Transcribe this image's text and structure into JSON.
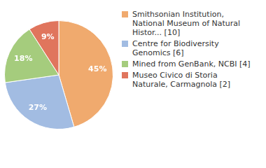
{
  "chart_data": {
    "type": "pie",
    "categories": [
      "Smithsonian Institution, National Museum of Natural Histor... [10]",
      "Centre for Biodiversity Genomics [6]",
      "Mined from GenBank, NCBI [4]",
      "Museo Civico di Storia Naturale, Carmagnola [2]"
    ],
    "values": [
      45,
      27,
      18,
      9
    ],
    "value_labels": [
      "45%",
      "27%",
      "18%",
      "9%"
    ],
    "colors": [
      "#f0aa6e",
      "#a2bce2",
      "#a5cc7d",
      "#e0755d"
    ],
    "data_labels": true,
    "legend": "right"
  }
}
